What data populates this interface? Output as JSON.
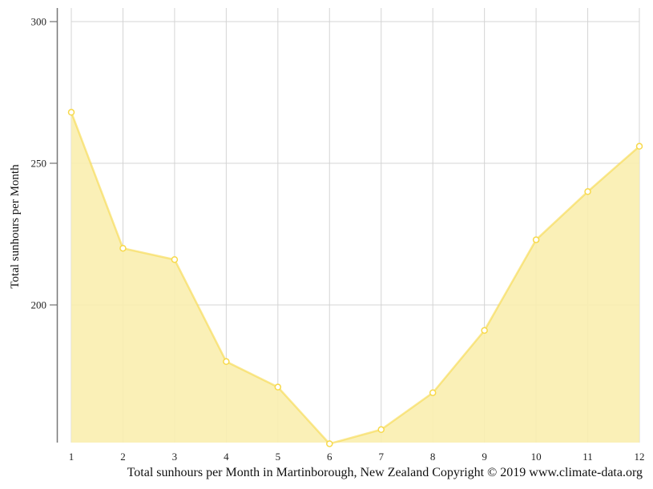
{
  "chart_data": {
    "type": "area",
    "title": "Total sunhours per Month in Martinborough, New Zealand Copyright © 2019 www.climate-data.org",
    "xlabel": "",
    "ylabel": "Total sunhours per Month",
    "categories": [
      "1",
      "2",
      "3",
      "4",
      "5",
      "6",
      "7",
      "8",
      "9",
      "10",
      "11",
      "12"
    ],
    "series": [
      {
        "name": "Total sunhours per Month",
        "values": [
          268,
          220,
          216,
          180,
          171,
          151,
          156,
          169,
          191,
          223,
          240,
          256
        ],
        "color": "#f7d94a",
        "fill": "#faeeaf"
      }
    ],
    "y_ticks": [
      200,
      250,
      300
    ],
    "ylim": [
      151,
      300
    ],
    "grid": true,
    "legend": "none"
  },
  "caption": "Total sunhours per Month in Martinborough, New Zealand Copyright © 2019 www.climate-data.org"
}
